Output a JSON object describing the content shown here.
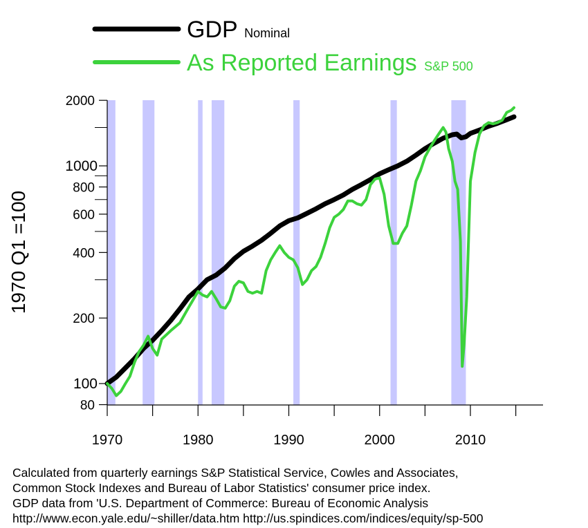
{
  "chart_data": {
    "type": "line",
    "title": "",
    "xlabel": "",
    "ylabel": "1970 Q1 =100",
    "yscale": "log",
    "xlim": [
      1970,
      2018
    ],
    "ylim": [
      75,
      2000
    ],
    "grid": false,
    "legend_position": "top-left",
    "x_ticks": [
      "1970",
      "1980",
      "1990",
      "2000",
      "2010"
    ],
    "y_ticks": [
      "2000",
      "1000",
      "800",
      "600",
      "400",
      "200",
      "100",
      "80"
    ],
    "recessions": [
      [
        1970.0,
        1970.9
      ],
      [
        1973.9,
        1975.2
      ],
      [
        1980.0,
        1980.5
      ],
      [
        1981.5,
        1982.9
      ],
      [
        1990.5,
        1991.2
      ],
      [
        2001.2,
        2001.9
      ],
      [
        2007.9,
        2009.5
      ]
    ],
    "series": [
      {
        "name": "GDP",
        "name_sub": "Nominal",
        "color": "#000000",
        "x": [
          1970,
          1971,
          1972,
          1973,
          1974,
          1975,
          1976,
          1977,
          1978,
          1979,
          1980,
          1981,
          1982,
          1983,
          1984,
          1985,
          1986,
          1987,
          1988,
          1989,
          1990,
          1991,
          1992,
          1993,
          1994,
          1995,
          1996,
          1997,
          1998,
          1999,
          2000,
          2001,
          2002,
          2003,
          2004,
          2005,
          2006,
          2007,
          2008,
          2008.5,
          2009,
          2009.5,
          2010,
          2011,
          2012,
          2013,
          2014,
          2014.8
        ],
        "values": [
          100,
          107,
          118,
          130,
          145,
          158,
          175,
          195,
          220,
          250,
          272,
          300,
          315,
          340,
          375,
          405,
          428,
          455,
          490,
          530,
          560,
          577,
          605,
          635,
          670,
          700,
          735,
          780,
          820,
          865,
          920,
          960,
          1000,
          1050,
          1120,
          1200,
          1270,
          1340,
          1390,
          1400,
          1345,
          1360,
          1410,
          1460,
          1520,
          1570,
          1630,
          1680
        ]
      },
      {
        "name": "As Reported Earnings",
        "name_sub": "S&P 500",
        "color": "#3cd23c",
        "x": [
          1970,
          1970.5,
          1971,
          1971.5,
          1972,
          1972.5,
          1973,
          1973.5,
          1974,
          1974.5,
          1975,
          1975.5,
          1976,
          1977,
          1978,
          1979,
          1980,
          1980.5,
          1981,
          1981.5,
          1982,
          1982.5,
          1983,
          1983.5,
          1984,
          1984.5,
          1985,
          1985.5,
          1986,
          1986.5,
          1987,
          1987.5,
          1988,
          1988.5,
          1989,
          1989.5,
          1990,
          1990.5,
          1991,
          1991.5,
          1992,
          1992.5,
          1993,
          1993.5,
          1994,
          1994.5,
          1995,
          1995.5,
          1996,
          1996.5,
          1997,
          1997.5,
          1998,
          1998.5,
          1999,
          1999.5,
          2000,
          2000.5,
          2001,
          2001.5,
          2002,
          2002.5,
          2003,
          2003.5,
          2004,
          2004.5,
          2005,
          2005.5,
          2006,
          2006.5,
          2007,
          2007.3,
          2007.6,
          2008,
          2008.3,
          2008.6,
          2008.9,
          2009.1,
          2009.3,
          2009.6,
          2010,
          2010.5,
          2011,
          2011.5,
          2012,
          2012.5,
          2013,
          2013.5,
          2014,
          2014.5,
          2014.8
        ],
        "values": [
          100,
          95,
          88,
          92,
          100,
          108,
          125,
          140,
          150,
          165,
          145,
          135,
          160,
          175,
          190,
          225,
          265,
          255,
          250,
          265,
          245,
          225,
          222,
          240,
          280,
          295,
          290,
          265,
          260,
          265,
          260,
          330,
          370,
          400,
          430,
          400,
          380,
          370,
          340,
          285,
          300,
          330,
          345,
          380,
          440,
          520,
          580,
          600,
          630,
          690,
          690,
          670,
          660,
          700,
          820,
          870,
          880,
          740,
          530,
          440,
          440,
          490,
          530,
          660,
          850,
          950,
          1100,
          1200,
          1300,
          1400,
          1500,
          1430,
          1200,
          1050,
          850,
          780,
          450,
          120,
          150,
          250,
          850,
          1150,
          1400,
          1530,
          1580,
          1560,
          1580,
          1620,
          1760,
          1800,
          1850
        ]
      }
    ],
    "source_text": [
      "Calculated from quarterly earnings  S&P Statistical Service, Cowles and Associates,",
      "Common Stock Indexes and Bureau of Labor Statistics' consumer price index.",
      "GDP data from 'U.S. Department of Commerce: Bureau of Economic Analysis",
      "http://www.econ.yale.edu/~shiller/data.htm    http://us.spindices.com/indices/equity/sp-500"
    ]
  }
}
